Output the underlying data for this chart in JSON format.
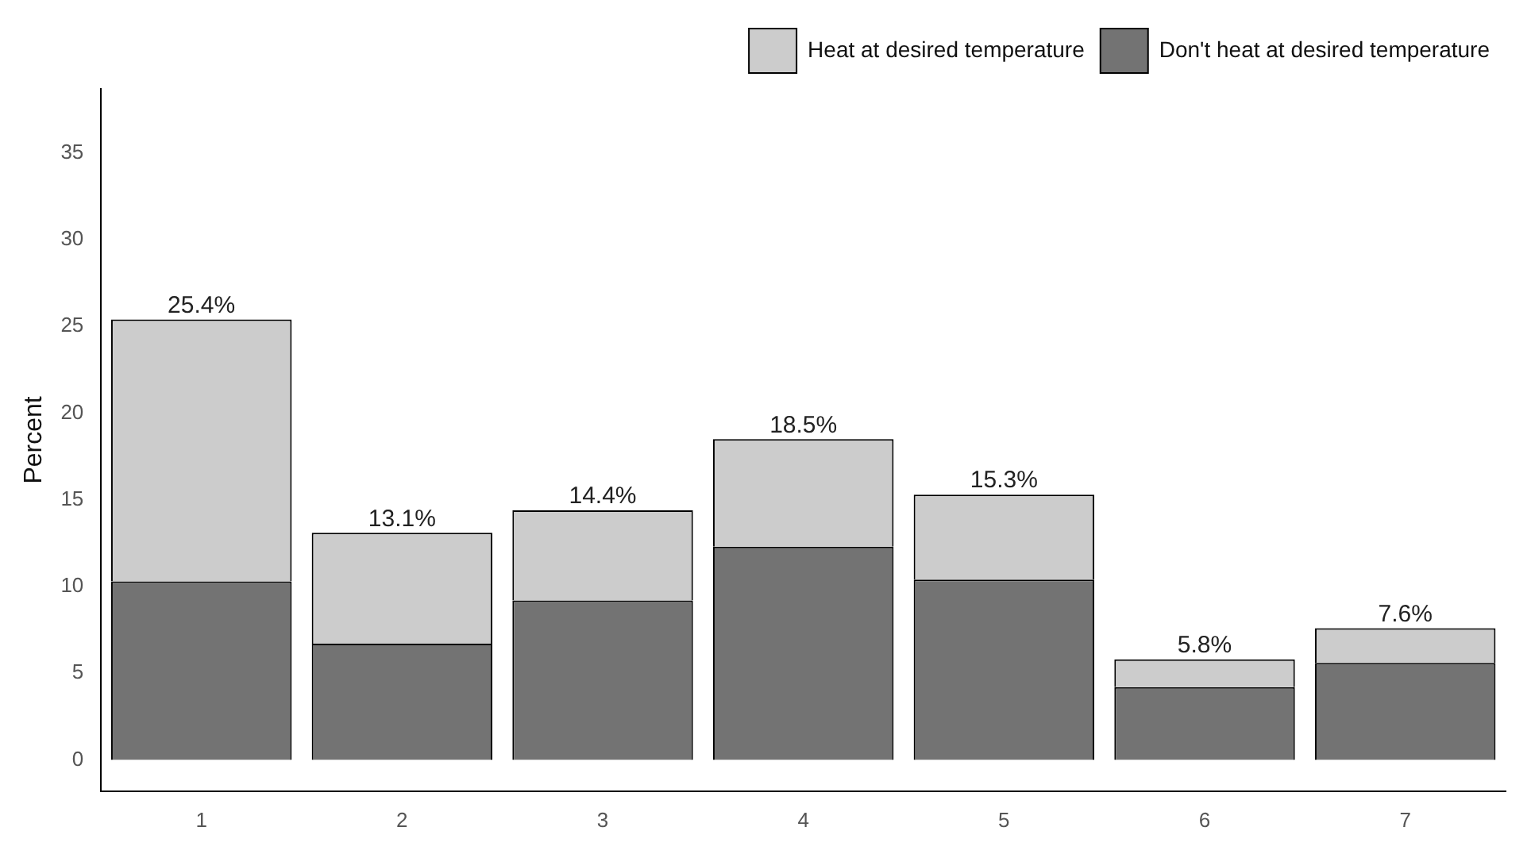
{
  "chart_data": {
    "type": "bar",
    "ylabel": "Percent",
    "categories": [
      "1",
      "2",
      "3",
      "4",
      "5",
      "6",
      "7"
    ],
    "stacked": true,
    "series": [
      {
        "name": "Don't heat at desired temperature",
        "color": "#737373",
        "values": [
          10.3,
          6.7,
          9.2,
          12.3,
          10.4,
          4.2,
          5.6
        ]
      },
      {
        "name": "Heat at desired temperature",
        "color": "#cccccc",
        "values": [
          15.1,
          6.4,
          5.2,
          6.2,
          4.9,
          1.6,
          2.0
        ]
      }
    ],
    "totals": [
      "25.4%",
      "13.1%",
      "14.4%",
      "18.5%",
      "15.3%",
      "5.8%",
      "7.6%"
    ],
    "ylim": [
      -1.8,
      38.7
    ],
    "yticks": [
      0,
      5,
      10,
      15,
      20,
      25,
      30,
      35
    ],
    "grid": false,
    "legend": "top right"
  }
}
